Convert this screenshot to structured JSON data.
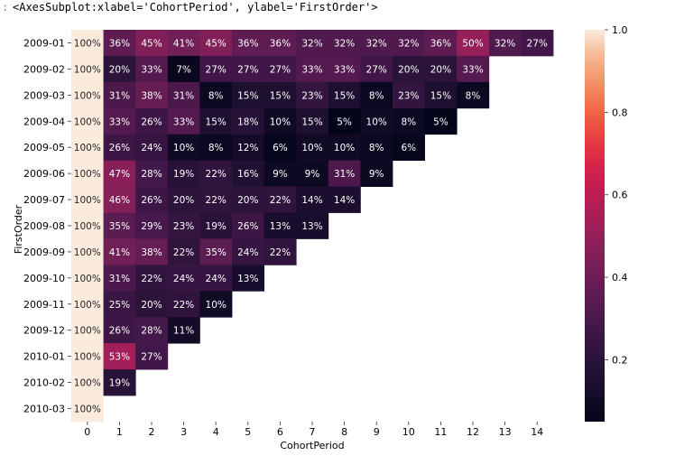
{
  "header": {
    "repr": "<AxesSubplot:xlabel='CohortPeriod', ylabel='FirstOrder'>",
    "gutter": ":"
  },
  "chart_data": {
    "type": "heatmap",
    "xlabel": "CohortPeriod",
    "ylabel": "FirstOrder",
    "x": [
      "0",
      "1",
      "2",
      "3",
      "4",
      "5",
      "6",
      "7",
      "8",
      "9",
      "10",
      "11",
      "12",
      "13",
      "14"
    ],
    "y": [
      "2009-01",
      "2009-02",
      "2009-03",
      "2009-04",
      "2009-05",
      "2009-06",
      "2009-07",
      "2009-08",
      "2009-09",
      "2009-10",
      "2009-11",
      "2009-12",
      "2010-01",
      "2010-02",
      "2010-03"
    ],
    "values": [
      [
        1.0,
        0.36,
        0.45,
        0.41,
        0.45,
        0.36,
        0.36,
        0.32,
        0.32,
        0.32,
        0.32,
        0.36,
        0.5,
        0.32,
        0.27
      ],
      [
        1.0,
        0.2,
        0.33,
        0.07,
        0.27,
        0.27,
        0.27,
        0.33,
        0.33,
        0.27,
        0.2,
        0.2,
        0.33
      ],
      [
        1.0,
        0.31,
        0.38,
        0.31,
        0.08,
        0.15,
        0.15,
        0.23,
        0.15,
        0.08,
        0.23,
        0.15,
        0.08
      ],
      [
        1.0,
        0.33,
        0.26,
        0.33,
        0.15,
        0.18,
        0.1,
        0.15,
        0.05,
        0.1,
        0.08,
        0.05
      ],
      [
        1.0,
        0.26,
        0.24,
        0.1,
        0.08,
        0.12,
        0.06,
        0.1,
        0.1,
        0.08,
        0.06
      ],
      [
        1.0,
        0.47,
        0.28,
        0.19,
        0.22,
        0.16,
        0.09,
        0.09,
        0.31,
        0.09
      ],
      [
        1.0,
        0.46,
        0.26,
        0.2,
        0.22,
        0.2,
        0.22,
        0.14,
        0.14
      ],
      [
        1.0,
        0.35,
        0.29,
        0.23,
        0.19,
        0.26,
        0.13,
        0.13
      ],
      [
        1.0,
        0.41,
        0.38,
        0.22,
        0.35,
        0.24,
        0.22
      ],
      [
        1.0,
        0.31,
        0.22,
        0.24,
        0.24,
        0.13
      ],
      [
        1.0,
        0.25,
        0.2,
        0.22,
        0.1
      ],
      [
        1.0,
        0.26,
        0.28,
        0.11
      ],
      [
        1.0,
        0.53,
        0.27
      ],
      [
        1.0,
        0.19
      ],
      [
        1.0
      ]
    ],
    "labels": [
      [
        "100%",
        "36%",
        "45%",
        "41%",
        "45%",
        "36%",
        "36%",
        "32%",
        "32%",
        "32%",
        "32%",
        "36%",
        "50%",
        "32%",
        "27%"
      ],
      [
        "100%",
        "20%",
        "33%",
        "7%",
        "27%",
        "27%",
        "27%",
        "33%",
        "33%",
        "27%",
        "20%",
        "20%",
        "33%"
      ],
      [
        "100%",
        "31%",
        "38%",
        "31%",
        "8%",
        "15%",
        "15%",
        "23%",
        "15%",
        "8%",
        "23%",
        "15%",
        "8%"
      ],
      [
        "100%",
        "33%",
        "26%",
        "33%",
        "15%",
        "18%",
        "10%",
        "15%",
        "5%",
        "10%",
        "8%",
        "5%"
      ],
      [
        "100%",
        "26%",
        "24%",
        "10%",
        "8%",
        "12%",
        "6%",
        "10%",
        "10%",
        "8%",
        "6%"
      ],
      [
        "100%",
        "47%",
        "28%",
        "19%",
        "22%",
        "16%",
        "9%",
        "9%",
        "31%",
        "9%"
      ],
      [
        "100%",
        "46%",
        "26%",
        "20%",
        "22%",
        "20%",
        "22%",
        "14%",
        "14%"
      ],
      [
        "100%",
        "35%",
        "29%",
        "23%",
        "19%",
        "26%",
        "13%",
        "13%"
      ],
      [
        "100%",
        "41%",
        "38%",
        "22%",
        "35%",
        "24%",
        "22%"
      ],
      [
        "100%",
        "31%",
        "22%",
        "24%",
        "24%",
        "13%"
      ],
      [
        "100%",
        "25%",
        "20%",
        "22%",
        "10%"
      ],
      [
        "100%",
        "26%",
        "28%",
        "11%"
      ],
      [
        "100%",
        "53%",
        "27%"
      ],
      [
        "100%",
        "19%"
      ],
      [
        "100%"
      ]
    ],
    "colorbar": {
      "vmin": 0.05,
      "vmax": 1.0,
      "ticks": [
        0.2,
        0.4,
        0.6,
        0.8,
        1.0
      ],
      "tick_labels": [
        "0.2",
        "0.4",
        "0.6",
        "0.8",
        "1.0"
      ],
      "colormap": "rocket"
    }
  }
}
